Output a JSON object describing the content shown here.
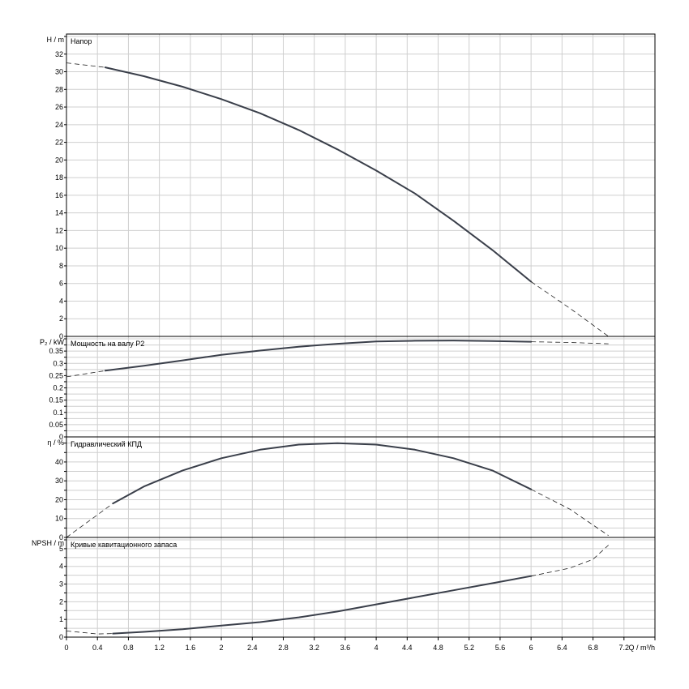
{
  "chart_data": {
    "type": "line",
    "x_axis": {
      "label": "Q / m³/h",
      "min": 0,
      "max": 7.6,
      "tick_step": 0.4,
      "ticks": [
        "0",
        "0.4",
        "0.8",
        "1.2",
        "1.6",
        "2",
        "2.4",
        "2.8",
        "3.2",
        "3.6",
        "4",
        "4.4",
        "4.8",
        "5.2",
        "5.6",
        "6",
        "6.4",
        "6.8",
        "7.2"
      ]
    },
    "panels": [
      {
        "id": "head",
        "title": "Напор",
        "unit_label": "H / m",
        "ylim": [
          0,
          34
        ],
        "tick_step": 2,
        "label_step": 2,
        "ticks": [
          "0",
          "2",
          "4",
          "6",
          "8",
          "10",
          "12",
          "14",
          "16",
          "18",
          "20",
          "22",
          "24",
          "26",
          "28",
          "30",
          "32"
        ],
        "dashed_left": [
          [
            0,
            31.0
          ],
          [
            0.5,
            30.5
          ]
        ],
        "solid": [
          [
            0.5,
            30.5
          ],
          [
            1.0,
            29.5
          ],
          [
            1.5,
            28.3
          ],
          [
            2.0,
            26.9
          ],
          [
            2.5,
            25.3
          ],
          [
            3.0,
            23.4
          ],
          [
            3.5,
            21.2
          ],
          [
            4.0,
            18.8
          ],
          [
            4.5,
            16.2
          ],
          [
            5.0,
            13.1
          ],
          [
            5.5,
            9.8
          ],
          [
            6.0,
            6.2
          ]
        ],
        "dashed_right": [
          [
            6.0,
            6.2
          ],
          [
            6.5,
            3.2
          ],
          [
            7.0,
            0.0
          ]
        ]
      },
      {
        "id": "power",
        "title": "Мощность на валу P2",
        "unit_label": "P₂ / kW",
        "ylim": [
          0,
          0.4
        ],
        "tick_step": 0.025,
        "label_step": 0.05,
        "ticks": [
          "0",
          "0.05",
          "0.1",
          "0.15",
          "0.2",
          "0.25",
          "0.3",
          "0.35"
        ],
        "dashed_left": [
          [
            0,
            0.245
          ],
          [
            0.5,
            0.27
          ]
        ],
        "solid": [
          [
            0.5,
            0.27
          ],
          [
            1.0,
            0.29
          ],
          [
            1.5,
            0.312
          ],
          [
            2.0,
            0.335
          ],
          [
            2.5,
            0.352
          ],
          [
            3.0,
            0.368
          ],
          [
            3.5,
            0.38
          ],
          [
            4.0,
            0.389
          ],
          [
            4.5,
            0.392
          ],
          [
            5.0,
            0.393
          ],
          [
            5.5,
            0.391
          ],
          [
            6.0,
            0.388
          ]
        ],
        "dashed_right": [
          [
            6.0,
            0.388
          ],
          [
            6.5,
            0.385
          ],
          [
            7.0,
            0.38
          ]
        ]
      },
      {
        "id": "efficiency",
        "title": "Гидравлический КПД",
        "unit_label": "η / %",
        "ylim": [
          0,
          52
        ],
        "tick_step": 5,
        "label_step": 10,
        "ticks": [
          "0",
          "10",
          "20",
          "30",
          "40"
        ],
        "dashed_left": [
          [
            0,
            0
          ],
          [
            0.3,
            9
          ],
          [
            0.6,
            18
          ]
        ],
        "solid": [
          [
            0.6,
            18
          ],
          [
            1.0,
            27
          ],
          [
            1.5,
            35.5
          ],
          [
            2.0,
            42
          ],
          [
            2.5,
            46.5
          ],
          [
            3.0,
            49.2
          ],
          [
            3.5,
            50
          ],
          [
            4.0,
            49.2
          ],
          [
            4.5,
            46.5
          ],
          [
            5.0,
            42
          ],
          [
            5.5,
            35.5
          ],
          [
            6.0,
            25.5
          ]
        ],
        "dashed_right": [
          [
            6.0,
            25.5
          ],
          [
            6.5,
            15
          ],
          [
            7.0,
            1
          ]
        ]
      },
      {
        "id": "npsh",
        "title": "Кривые кавитационного запаса",
        "unit_label": "NPSH / m",
        "ylim": [
          0,
          5.5
        ],
        "tick_step": 0.5,
        "label_step": 1,
        "ticks": [
          "0",
          "1",
          "2",
          "3",
          "4",
          "5"
        ],
        "dashed_left": [
          [
            0,
            0.35
          ],
          [
            0.4,
            0.18
          ],
          [
            0.6,
            0.2
          ]
        ],
        "solid": [
          [
            0.6,
            0.2
          ],
          [
            1.0,
            0.3
          ],
          [
            1.5,
            0.45
          ],
          [
            2.0,
            0.65
          ],
          [
            2.5,
            0.85
          ],
          [
            3.0,
            1.12
          ],
          [
            3.5,
            1.45
          ],
          [
            4.0,
            1.85
          ],
          [
            4.5,
            2.25
          ],
          [
            5.0,
            2.65
          ],
          [
            5.5,
            3.05
          ],
          [
            6.0,
            3.45
          ]
        ],
        "dashed_right": [
          [
            6.0,
            3.45
          ],
          [
            6.5,
            3.9
          ],
          [
            6.8,
            4.4
          ],
          [
            7.0,
            5.2
          ]
        ]
      }
    ]
  }
}
